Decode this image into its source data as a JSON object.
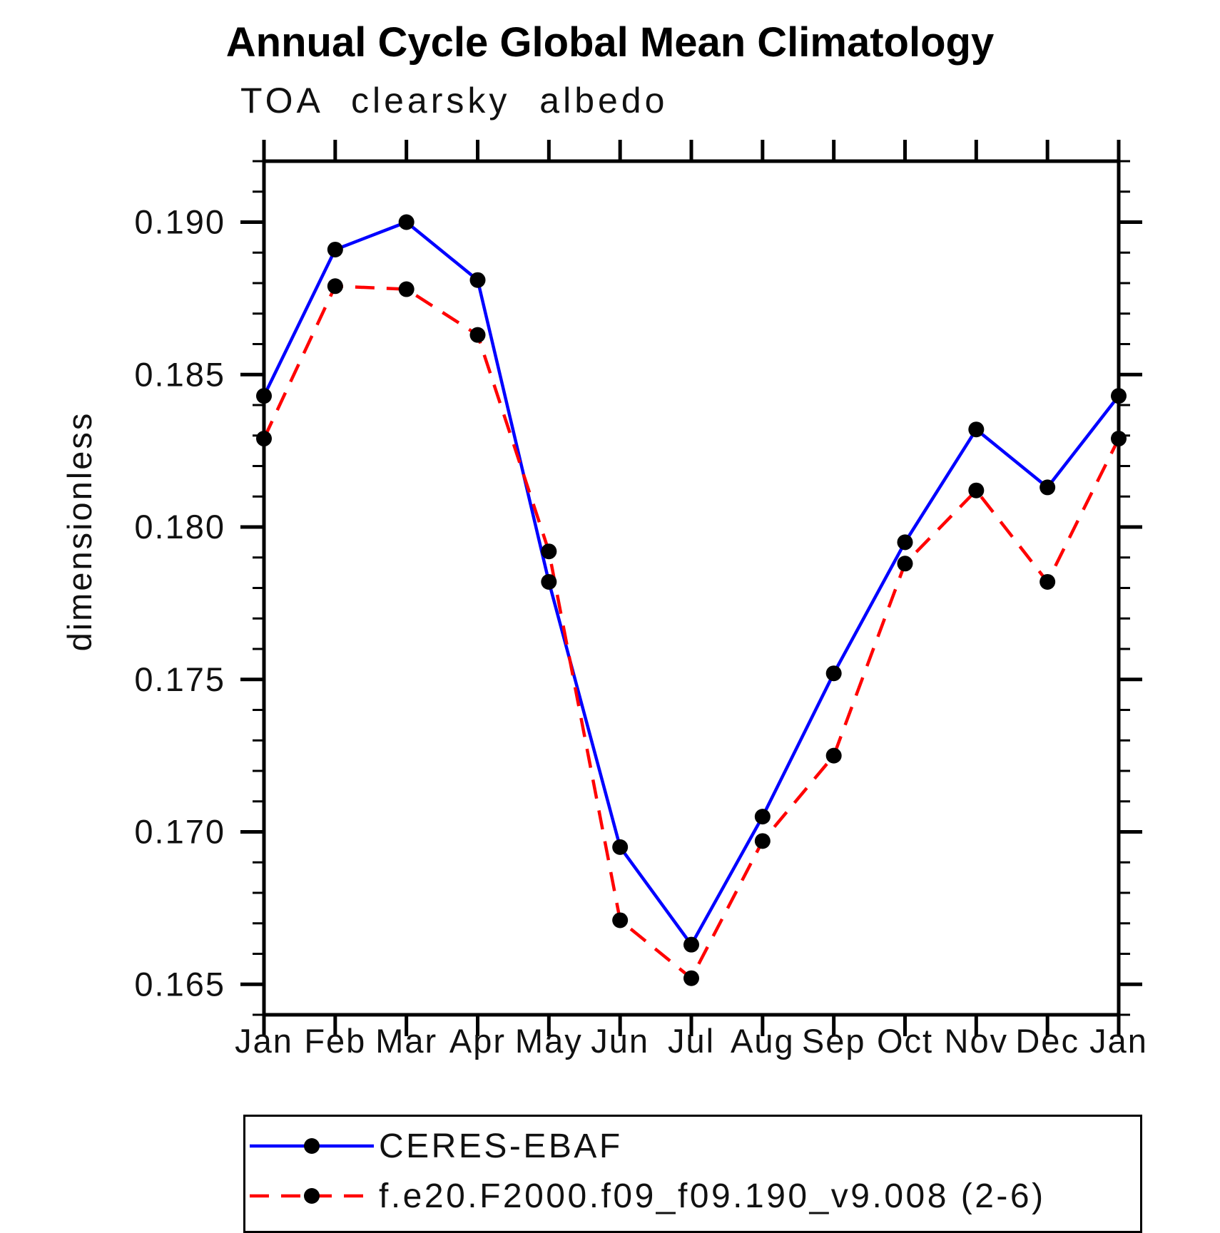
{
  "chart_data": {
    "type": "line",
    "title": "Annual Cycle Global Mean Climatology",
    "subtitle": "TOA clearsky albedo",
    "ylabel": "dimensionless",
    "xlabel": "",
    "categories": [
      "Jan",
      "Feb",
      "Mar",
      "Apr",
      "May",
      "Jun",
      "Jul",
      "Aug",
      "Sep",
      "Oct",
      "Nov",
      "Dec",
      "Jan"
    ],
    "ylim": [
      0.164,
      0.192
    ],
    "ytick_major_step": 0.005,
    "ytick_minor_step": 0.001,
    "ytick_labels": [
      "0.165",
      "0.170",
      "0.175",
      "0.180",
      "0.185",
      "0.190"
    ],
    "grid": false,
    "legend_position": "bottom-left",
    "marker_color": "#000000",
    "axis_color": "#000000",
    "series": [
      {
        "name": "CERES-EBAF",
        "color": "#0000ff",
        "style": "solid",
        "marker": "filled-circle",
        "values": [
          0.1843,
          0.1891,
          0.19,
          0.1881,
          0.1782,
          0.1695,
          0.1663,
          0.1705,
          0.1752,
          0.1795,
          0.1832,
          0.1813,
          0.1843
        ]
      },
      {
        "name": "f.e20.F2000.f09_f09.190_v9.008 (2-6)",
        "color": "#ff0000",
        "style": "dashed",
        "marker": "filled-circle",
        "values": [
          0.1829,
          0.1879,
          0.1878,
          0.1863,
          0.1792,
          0.1671,
          0.1652,
          0.1697,
          0.1725,
          0.1788,
          0.1812,
          0.1782,
          0.1829
        ]
      }
    ]
  }
}
